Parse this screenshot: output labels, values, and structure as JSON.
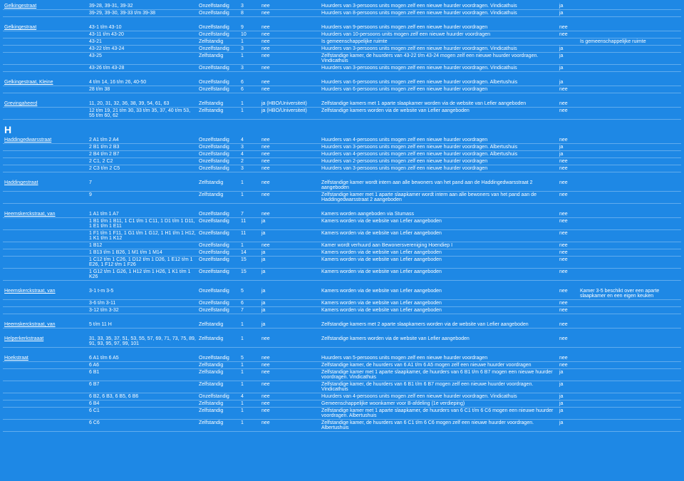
{
  "rows": [
    [
      "Gelkingestraat",
      "39-28, 39-31, 39-32",
      "Onzelfstandig",
      "3",
      "nee",
      "Huurders van 3-persoons units mogen zelf een nieuwe huurder voordragen. Vindicathuis",
      "ja",
      ""
    ],
    [
      "",
      "39-29, 39-30, 39-33 t/m 39-38",
      "Onzelfstandig",
      "8",
      "nee",
      "Huurders van 8-persoons units mogen zelf een nieuwe huurder voordragen. Vindicathuis",
      "ja",
      ""
    ],
    [
      "SECT"
    ],
    [
      "Gelkingestraat",
      "43-1 t/m 43-10",
      "Onzelfstandig",
      "9",
      "nee",
      "Huurders van 9-persoons units mogen zelf een nieuwe huurder voordragen",
      "nee",
      ""
    ],
    [
      "",
      "43-11 t/m 43-20",
      "Onzelfstandig",
      "10",
      "nee",
      "Huurders van 10-persoons units mogen zelf een nieuwe huurder voordragen",
      "nee",
      ""
    ],
    [
      "",
      "43-21",
      "Zelfstandig",
      "1",
      "nee",
      "Is gemeenschappelijke ruimte",
      "",
      "Is gemeenschappelijke ruimte"
    ],
    [
      "",
      "43-22 t/m 43-24",
      "Onzelfstandig",
      "3",
      "nee",
      "Huurders van 3-persoons units mogen zelf een nieuwe huurder voordragen. Vindicathuis",
      "ja",
      ""
    ],
    [
      "",
      "43-25",
      "Zelfstandig",
      "1",
      "nee",
      "Zelfstandige kamer, de huurders van 43-22 t/m 43-24 mogen zelf een nieuwe huurder voordragen. Vindicathuis",
      "ja",
      ""
    ],
    [
      "",
      "43-26 t/m 43-28",
      "Onzelfstandig",
      "3",
      "nee",
      "Huurders van 3-persoons units mogen zelf een nieuwe huurder voordragen. Vindicathuis",
      "ja",
      ""
    ],
    [
      "SECT"
    ],
    [
      "Gelkingestraat, Kleine",
      "4 t/m 14, 16 t/m 26, 40-50",
      "Onzelfstandig",
      "6",
      "nee",
      "Huurders van 6-persoons units mogen zelf een nieuwe huurder voordragen. Albertushuis",
      "ja",
      ""
    ],
    [
      "",
      "28 t/m 38",
      "Onzelfstandig",
      "6",
      "nee",
      "Huurders van 6-persoons units mogen zelf een nieuwe huurder voordragen",
      "nee",
      ""
    ],
    [
      "SECT"
    ],
    [
      "Grevingaheerd",
      "11, 20, 31, 32, 36, 38, 39, 54, 61, 63",
      "Zelfstandig",
      "1",
      "ja (HBO/Universiteit)",
      "Zelfstandige kamers met 1 aparte slaapkamer worden via de website van Lefier aangeboden",
      "nee",
      ""
    ],
    [
      "",
      "12 t/m 19, 21 t/m 30, 33 t/m 35, 37, 40 t/m 53, 55 t/m 60, 62",
      "Zelfstandig",
      "1",
      "ja (HBO/Universiteit)",
      "Zelfstandige kamers worden via de website van Lefier aangeboden",
      "nee",
      ""
    ],
    [
      "HDR",
      "H"
    ],
    [
      "Haddingedwarsstraat",
      "2 A1 t/m 2 A4",
      "Onzelfstandig",
      "4",
      "nee",
      "Huurders van 4-persoons units mogen zelf een nieuwe huurder voordragen",
      "nee",
      ""
    ],
    [
      "",
      "2 B1 t/m 2 B3",
      "Onzelfstandig",
      "3",
      "nee",
      "Huurders van 3-persoons units mogen zelf een nieuwe huurder voordragen. Albertushuis",
      "ja",
      ""
    ],
    [
      "",
      "2 B4 t/m 2 B7",
      "Onzelfstandig",
      "4",
      "nee",
      "Huurders van 4-persoons units mogen zelf een nieuwe huurder voordragen. Albertushuis",
      "ja",
      ""
    ],
    [
      "",
      "2 C1, 2 C2",
      "Onzelfstandig",
      "2",
      "nee",
      "Huurders van 2-persoons units mogen zelf een nieuwe huurder voordragen",
      "nee",
      ""
    ],
    [
      "",
      "2 C3 t/m 2 C5",
      "Onzelfstandig",
      "3",
      "nee",
      "Huurders van 3-persoons units mogen zelf een nieuwe huurder voordragen",
      "nee",
      ""
    ],
    [
      "SECT"
    ],
    [
      "Haddingestraat",
      "7",
      "Zelfstandig",
      "1",
      "nee",
      "Zelfstandige kamer wordt intern aan alle bewoners van het pand aan de Haddingedwarsstraat 2 aangeboden",
      "nee",
      ""
    ],
    [
      "",
      "9",
      "Zelfstandig",
      "1",
      "nee",
      "Zelfstandige kamer met 1 aparte slaapkamer wordt intern aan alle bewoners van het pand aan de Haddingedwarsstraat 2 aangeboden",
      "nee",
      ""
    ],
    [
      "SECT"
    ],
    [
      "Heemskerckstraat, van",
      "1 A1 t/m 1 A7",
      "Onzelfstandig",
      "7",
      "nee",
      "Kamers worden aangeboden via Stumass",
      "nee",
      ""
    ],
    [
      "",
      "1 B1 t/m 1 B11, 1 C1 t/m 1 C11, 1 D1 t/m 1 D11, 1 E1 t/m 1 E11",
      "Onzelfstandig",
      "11",
      "ja",
      "Kamers worden via de website van Lefier aangeboden",
      "nee",
      ""
    ],
    [
      "",
      "1 F1 t/m 1 F11, 1 G1 t/m 1 G12, 1 H1 t/m 1 H12, 1 K1 t/m 1 K12",
      "Onzelfstandig",
      "11",
      "ja",
      "Kamers worden via de website van Lefier aangeboden",
      "nee",
      ""
    ],
    [
      "",
      "1 B12",
      "Onzelfstandig",
      "1",
      "nee",
      "Kamer wordt verhuurd aan Bewonersvereniging Hoendiep I",
      "nee",
      ""
    ],
    [
      "",
      "1 B13 t/m 1 B26, 1 M1 t/m 1 M14",
      "Onzelfstandig",
      "14",
      "ja",
      "Kamers worden via de website van Lefier aangeboden",
      "nee",
      ""
    ],
    [
      "",
      "1 C12 t/m 1 C26, 1 D12 t/m 1 D26, 1 E12 t/m 1 E26, 1 F12 t/m 1 F26",
      "Onzelfstandig",
      "15",
      "ja",
      "Kamers worden via de website van Lefier aangeboden",
      "nee",
      ""
    ],
    [
      "",
      "1 G12 t/m 1 G26, 1 H12 t/m 1 H26, 1 K1 t/m 1 K26",
      "Onzelfstandig",
      "15",
      "ja",
      "Kamers worden via de website van Lefier aangeboden",
      "nee",
      ""
    ],
    [
      "SECT"
    ],
    [
      "Heemskerckstraat, van",
      "3-1 t-m 3-5",
      "Onzelfstandig",
      "5",
      "ja",
      "Kamers worden via de website van Lefier aangeboden",
      "nee",
      "Kamer 3-5 beschikt over een aparte slaapkamer en een eigen keuken"
    ],
    [
      "",
      "3-6 t/m 3-11",
      "Onzelfstandig",
      "6",
      "ja",
      "Kamers worden via de website van Lefier aangeboden",
      "nee",
      ""
    ],
    [
      "",
      "3-12 t/m 3-32",
      "Onzelfstandig",
      "7",
      "ja",
      "Kamers worden via de website van Lefier aangeboden",
      "nee",
      ""
    ],
    [
      "SECT"
    ],
    [
      "Heemskerckstraat, van",
      "5 t/m 11 H",
      "Zelfstandig",
      "1",
      "ja",
      "Zelfstandige kamers met 2 aparte slaapkamers worden via de website van Lefier aangeboden",
      "nee",
      ""
    ],
    [
      "SECT"
    ],
    [
      "Helperkerkstraaat",
      "31, 33, 35, 37, 51, 53, 55, 57, 69, 71, 73, 75, 89, 91, 93, 95, 97, 99, 101",
      "Zelfstandig",
      "1",
      "nee",
      "Zelfstandige kamers worden via de website van Lefier aangeboden",
      "nee",
      ""
    ],
    [
      "SECT"
    ],
    [
      "Hoekstraat",
      "6 A1 t/m 6 A5",
      "Onzelfstandig",
      "5",
      "nee",
      "Huurders van 5-persoons units mogen zelf een nieuwe huurder voordragen",
      "nee",
      ""
    ],
    [
      "",
      "6 A6",
      "Zelfstandig",
      "1",
      "nee",
      "Zelfstandige kamer, de huurders van 6 A1 t/m 6 A5 mogen zelf een nieuwe huurder voordragen",
      "nee",
      ""
    ],
    [
      "",
      "6 B1",
      "Zelfstandig",
      "1",
      "nee",
      "Zelfstandige kamer met 1 aparte slaapkamer, de huurders van 6 B1 t/m 6 B7 mogen een nieuwe huurder voordragen. Vindicathuis",
      "ja",
      ""
    ],
    [
      "",
      "6 B7",
      "Zelfstandig",
      "1",
      "nee",
      "Zelfstandige kamer, de huurders van 6 B1 t/m 6 B7 mogen zelf een nieuwe huurder voordragen. Vindicathuis",
      "ja",
      ""
    ],
    [
      "",
      "6 B2, 6 B3, 6 B5, 6 B6",
      "Onzelfstandig",
      "4",
      "nee",
      "Huurders van 4-persoons units mogen zelf een nieuwe huurder voordragen. Vindicathuis",
      "ja",
      ""
    ],
    [
      "",
      "6 B4",
      "Zelfstandig",
      "1",
      "nee",
      "Gemeenschappelijke woonkamer voor B-afdeling (1e verdieping)",
      "ja",
      ""
    ],
    [
      "",
      "6 C1",
      "Zelfstandig",
      "1",
      "nee",
      "Zelfstandige kamer met 1 aparte slaapkamer, de huurders van 6 C1 t/m 6 C6 mogen een nieuwe huurder voordragen. Albertushuis",
      "ja",
      ""
    ],
    [
      "",
      "6 C6",
      "Zelfstandig",
      "1",
      "nee",
      "Zelfstandige kamer, de huurders van 6 C1 t/m 6 C6 mogen zelf een nieuwe huurder voordragen. Albertushuis",
      "ja",
      ""
    ]
  ]
}
